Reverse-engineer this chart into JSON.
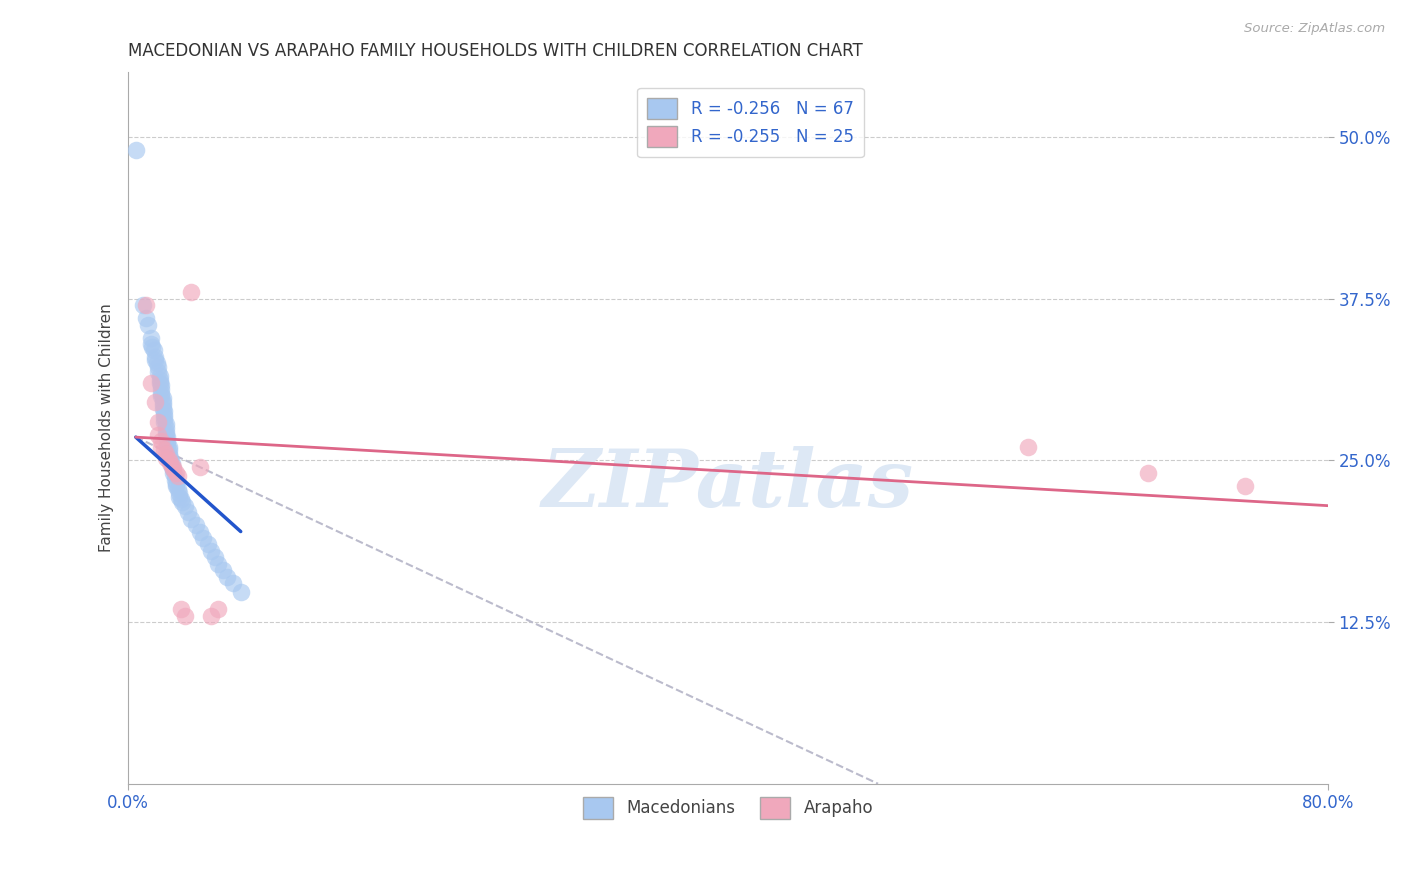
{
  "title": "MACEDONIAN VS ARAPAHO FAMILY HOUSEHOLDS WITH CHILDREN CORRELATION CHART",
  "source": "Source: ZipAtlas.com",
  "ylabel": "Family Households with Children",
  "ytick_labels": [
    "12.5%",
    "25.0%",
    "37.5%",
    "50.0%"
  ],
  "ytick_values": [
    0.125,
    0.25,
    0.375,
    0.5
  ],
  "xlim": [
    0.0,
    0.8
  ],
  "ylim": [
    0.0,
    0.55
  ],
  "legend_macedonian": "R = -0.256   N = 67",
  "legend_arapaho": "R = -0.255   N = 25",
  "macedonian_color": "#A8C8F0",
  "arapaho_color": "#F0A8BC",
  "macedonian_line_color": "#2255CC",
  "arapaho_line_color": "#DD6688",
  "dashed_line_color": "#BBBBCC",
  "watermark": "ZIPatlas",
  "macedonian_x": [
    0.005,
    0.01,
    0.012,
    0.013,
    0.015,
    0.015,
    0.016,
    0.017,
    0.018,
    0.018,
    0.019,
    0.02,
    0.02,
    0.021,
    0.021,
    0.021,
    0.022,
    0.022,
    0.022,
    0.022,
    0.023,
    0.023,
    0.023,
    0.023,
    0.024,
    0.024,
    0.024,
    0.024,
    0.025,
    0.025,
    0.025,
    0.025,
    0.026,
    0.026,
    0.026,
    0.027,
    0.027,
    0.027,
    0.028,
    0.028,
    0.029,
    0.029,
    0.03,
    0.03,
    0.031,
    0.031,
    0.032,
    0.032,
    0.033,
    0.034,
    0.034,
    0.035,
    0.036,
    0.038,
    0.04,
    0.042,
    0.045,
    0.048,
    0.05,
    0.053,
    0.055,
    0.058,
    0.06,
    0.063,
    0.066,
    0.07,
    0.075
  ],
  "macedonian_y": [
    0.49,
    0.37,
    0.36,
    0.355,
    0.345,
    0.34,
    0.338,
    0.335,
    0.33,
    0.328,
    0.325,
    0.322,
    0.318,
    0.315,
    0.312,
    0.31,
    0.308,
    0.305,
    0.302,
    0.3,
    0.298,
    0.295,
    0.293,
    0.29,
    0.288,
    0.285,
    0.283,
    0.28,
    0.278,
    0.275,
    0.272,
    0.27,
    0.268,
    0.265,
    0.262,
    0.26,
    0.258,
    0.255,
    0.252,
    0.25,
    0.248,
    0.245,
    0.243,
    0.24,
    0.238,
    0.235,
    0.232,
    0.23,
    0.228,
    0.225,
    0.222,
    0.22,
    0.218,
    0.215,
    0.21,
    0.205,
    0.2,
    0.195,
    0.19,
    0.185,
    0.18,
    0.175,
    0.17,
    0.165,
    0.16,
    0.155,
    0.148
  ],
  "arapaho_x": [
    0.012,
    0.015,
    0.018,
    0.02,
    0.02,
    0.022,
    0.022,
    0.024,
    0.025,
    0.025,
    0.027,
    0.028,
    0.03,
    0.03,
    0.032,
    0.033,
    0.035,
    0.038,
    0.042,
    0.048,
    0.055,
    0.06,
    0.6,
    0.68,
    0.745
  ],
  "arapaho_y": [
    0.37,
    0.31,
    0.295,
    0.28,
    0.27,
    0.265,
    0.26,
    0.258,
    0.255,
    0.252,
    0.25,
    0.248,
    0.245,
    0.243,
    0.24,
    0.238,
    0.135,
    0.13,
    0.38,
    0.245,
    0.13,
    0.135,
    0.26,
    0.24,
    0.23
  ],
  "macedonian_trend_x": [
    0.005,
    0.075
  ],
  "macedonian_trend_y": [
    0.268,
    0.195
  ],
  "arapaho_trend_x": [
    0.005,
    0.8
  ],
  "arapaho_trend_y": [
    0.268,
    0.215
  ],
  "dashed_trend_x": [
    0.005,
    0.5
  ],
  "dashed_trend_y": [
    0.268,
    0.0
  ]
}
